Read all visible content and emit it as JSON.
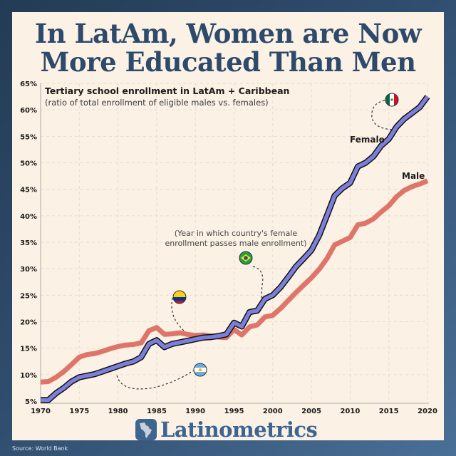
{
  "header": {
    "title_line1": "In LatAm, Women are Now",
    "title_line2": "More Educated Than Men"
  },
  "chart_data": {
    "type": "line",
    "title": "Tertiary school enrollment in LatAm + Caribbean",
    "subtitle": "(ratio of total enrollment of eligible males vs. females)",
    "xlabel": "",
    "ylabel": "",
    "xlim": [
      1970,
      2020
    ],
    "ylim": [
      5,
      65
    ],
    "x_ticks": [
      1970,
      1975,
      1980,
      1985,
      1990,
      1995,
      2000,
      2005,
      2010,
      2015,
      2020
    ],
    "y_ticks": [
      "5%",
      "10%",
      "15%",
      "20%",
      "25%",
      "30%",
      "35%",
      "40%",
      "45%",
      "50%",
      "55%",
      "60%",
      "65%"
    ],
    "grid": true,
    "x": [
      1970,
      1971,
      1972,
      1973,
      1974,
      1975,
      1976,
      1977,
      1978,
      1979,
      1980,
      1981,
      1982,
      1983,
      1984,
      1985,
      1986,
      1987,
      1988,
      1989,
      1990,
      1991,
      1992,
      1993,
      1994,
      1995,
      1996,
      1997,
      1998,
      1999,
      2000,
      2001,
      2002,
      2003,
      2004,
      2005,
      2006,
      2007,
      2008,
      2009,
      2010,
      2011,
      2012,
      2013,
      2014,
      2015,
      2016,
      2017,
      2018,
      2019,
      2020
    ],
    "series": [
      {
        "name": "Female",
        "color": "#7b7fd9",
        "values": [
          5.2,
          5.2,
          6.5,
          7.5,
          8.7,
          9.5,
          9.8,
          10.1,
          10.6,
          11.1,
          11.6,
          12.1,
          12.5,
          13.3,
          15.8,
          16.5,
          15.2,
          15.8,
          16.1,
          16.4,
          16.7,
          17.0,
          17.1,
          17.3,
          17.6,
          19.8,
          19.1,
          21.8,
          22.1,
          24.3,
          25.0,
          26.5,
          28.4,
          30.4,
          31.9,
          33.5,
          36.3,
          40.0,
          43.8,
          45.2,
          46.2,
          49.3,
          50.0,
          51.2,
          53.2,
          54.5,
          56.8,
          58.3,
          59.4,
          60.5,
          62.5
        ]
      },
      {
        "name": "Male",
        "color": "#df7468",
        "values": [
          8.6,
          8.7,
          9.5,
          10.6,
          11.9,
          13.3,
          13.8,
          14.0,
          14.4,
          14.9,
          15.3,
          15.6,
          15.7,
          16.0,
          18.3,
          18.9,
          17.6,
          17.7,
          17.9,
          17.6,
          17.4,
          17.5,
          17.3,
          17.1,
          17.0,
          18.5,
          17.5,
          19.0,
          19.4,
          20.9,
          21.2,
          22.5,
          24.0,
          25.5,
          26.9,
          28.3,
          29.9,
          31.9,
          34.5,
          35.2,
          35.9,
          38.3,
          38.6,
          39.4,
          40.7,
          41.9,
          43.6,
          44.8,
          45.5,
          46.0,
          46.6
        ]
      }
    ],
    "series_labels": {
      "female": "Female",
      "male": "Male"
    },
    "annotations": {
      "note_line1": "(Year in which country's female",
      "note_line2": "enrollment passes male enrollment)",
      "flags": [
        {
          "country": "Argentina",
          "year": 1980
        },
        {
          "country": "Colombia",
          "year": 1989
        },
        {
          "country": "Brazil",
          "year": 1998
        },
        {
          "country": "Mexico",
          "year": 2015
        }
      ]
    }
  },
  "footer": {
    "brand": "Latinometrics",
    "source": "Source: World Bank"
  }
}
